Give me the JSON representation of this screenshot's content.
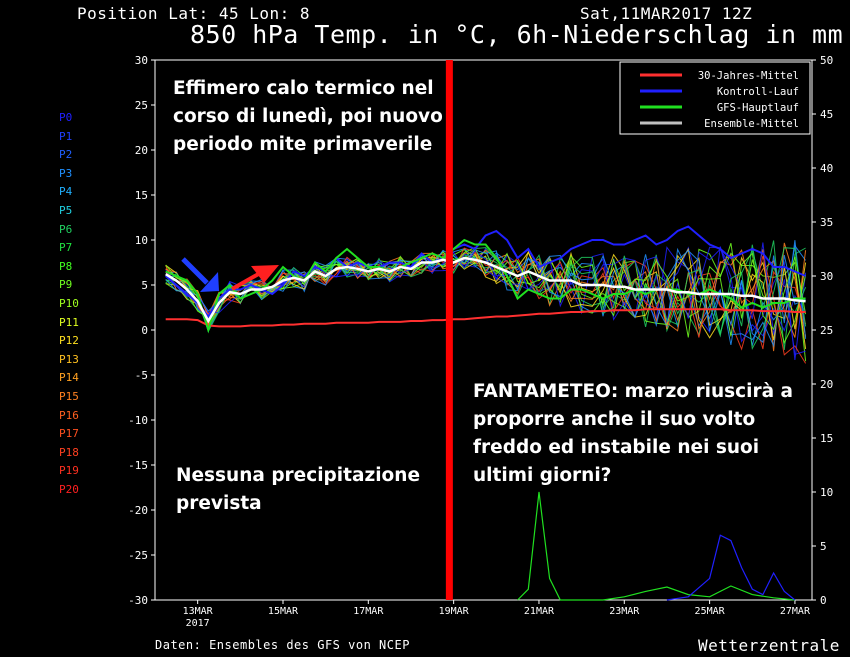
{
  "header": {
    "position": "Position  Lat: 45 Lon: 8",
    "date": "Sat,11MAR2017 12Z",
    "title": "850 hPa Temp. in °C, 6h-Niederschlag in mm"
  },
  "footer": {
    "source": "Daten: Ensembles des GFS von NCEP",
    "brand": "Wetterzentrale"
  },
  "annotations": {
    "top_left": "Effimero calo termico nel\ncorso di lunedì, poi nuovo\nperiodo mite primaverile",
    "bottom_right": "FANTAMETEO: marzo riuscirà a\nproporre anche il suo volto\nfreddo ed instabile nei suoi\nultimi giorni?",
    "bottom_left": "Nessuna precipitazione\nprevista"
  },
  "member_labels": [
    "P0",
    "P1",
    "P2",
    "P3",
    "P4",
    "P5",
    "P6",
    "P7",
    "P8",
    "P9",
    "P10",
    "P11",
    "P12",
    "P13",
    "P14",
    "P15",
    "P16",
    "P17",
    "P18",
    "P19",
    "P20"
  ],
  "member_colors": [
    "#2020ff",
    "#2040ff",
    "#2060ff",
    "#2090ff",
    "#20b0ff",
    "#20d0e0",
    "#20d060",
    "#20e040",
    "#40ff20",
    "#70ff20",
    "#a0ff20",
    "#e0ff20",
    "#ffe020",
    "#ffc020",
    "#ffa020",
    "#ff8020",
    "#ff6020",
    "#ff5020",
    "#ff4020",
    "#ff3020",
    "#ff2020"
  ],
  "marker_color": "#ff0000",
  "chart_data": {
    "type": "line",
    "title": "850 hPa Temp. in °C, 6h-Niederschlag in mm",
    "y_left_range": [
      -30,
      30
    ],
    "y_left_ticks": [
      "30",
      "25",
      "20",
      "15",
      "10",
      "5",
      "0",
      "-5",
      "-10",
      "-15",
      "-20",
      "-25",
      "-30"
    ],
    "y_right_range": [
      0,
      50
    ],
    "y_right_ticks": [
      "50",
      "45",
      "40",
      "35",
      "30",
      "25",
      "20",
      "15",
      "10",
      "5",
      "0"
    ],
    "x_range": [
      12,
      27.4
    ],
    "x_ticks": [
      {
        "x": 13,
        "label": "13MAR",
        "sub": "2017"
      },
      {
        "x": 15,
        "label": "15MAR",
        "sub": ""
      },
      {
        "x": 17,
        "label": "17MAR",
        "sub": ""
      },
      {
        "x": 19,
        "label": "19MAR",
        "sub": ""
      },
      {
        "x": 21,
        "label": "21MAR",
        "sub": ""
      },
      {
        "x": 23,
        "label": "23MAR",
        "sub": ""
      },
      {
        "x": 25,
        "label": "25MAR",
        "sub": ""
      },
      {
        "x": 27,
        "label": "27MAR",
        "sub": ""
      }
    ],
    "marker_x": 18.9,
    "legend": [
      {
        "name": "30-Jahres-Mittel",
        "color": "#ff3030"
      },
      {
        "name": "Kontroll-Lauf",
        "color": "#2020ff"
      },
      {
        "name": "GFS-Hauptlauf",
        "color": "#20e020"
      },
      {
        "name": "Ensemble-Mittel",
        "color": "#c0c0c0"
      }
    ],
    "legend_position": "top-right",
    "x": [
      12.25,
      12.5,
      12.75,
      13,
      13.25,
      13.5,
      13.75,
      14,
      14.25,
      14.5,
      14.75,
      15,
      15.25,
      15.5,
      15.75,
      16,
      16.25,
      16.5,
      16.75,
      17,
      17.25,
      17.5,
      17.75,
      18,
      18.25,
      18.5,
      18.75,
      19,
      19.25,
      19.5,
      19.75,
      20,
      20.25,
      20.5,
      20.75,
      21,
      21.25,
      21.5,
      21.75,
      22,
      22.25,
      22.5,
      22.75,
      23,
      23.25,
      23.5,
      23.75,
      24,
      24.25,
      24.5,
      24.75,
      25,
      25.25,
      25.5,
      25.75,
      26,
      26.25,
      26.5,
      26.75,
      27,
      27.25
    ],
    "series": [
      {
        "name": "30-Jahres-Mittel",
        "values": [
          1.2,
          1.2,
          1.2,
          1.1,
          0.5,
          0.4,
          0.4,
          0.4,
          0.5,
          0.5,
          0.5,
          0.6,
          0.6,
          0.7,
          0.7,
          0.7,
          0.8,
          0.8,
          0.8,
          0.8,
          0.9,
          0.9,
          0.9,
          1,
          1,
          1.1,
          1.1,
          1.2,
          1.2,
          1.3,
          1.4,
          1.5,
          1.5,
          1.6,
          1.7,
          1.8,
          1.8,
          1.9,
          2,
          2,
          2.1,
          2.1,
          2.2,
          2.2,
          2.2,
          2.3,
          2.3,
          2.3,
          2.3,
          2.3,
          2.3,
          2.3,
          2.3,
          2.2,
          2.2,
          2.2,
          2.1,
          2.1,
          2.1,
          2,
          2
        ]
      },
      {
        "name": "Kontroll-Lauf",
        "values": [
          6,
          5,
          4,
          3,
          1.5,
          3.5,
          4.5,
          4.5,
          5,
          4.5,
          4,
          5,
          6.5,
          6,
          7,
          6.5,
          8,
          7,
          7.5,
          7,
          7,
          7.5,
          7.5,
          7,
          8.5,
          7.5,
          8,
          9,
          9.5,
          9,
          10.5,
          11,
          10,
          8,
          9,
          7,
          7.5,
          8,
          9,
          9.5,
          10,
          10,
          9.5,
          9.5,
          10,
          10.5,
          9.5,
          10,
          11,
          11.5,
          10.5,
          9.5,
          9,
          8,
          8.5,
          9,
          8.5,
          7,
          7,
          6.5,
          6
        ]
      },
      {
        "name": "GFS-Hauptlauf",
        "values": [
          6.5,
          6,
          5.5,
          4,
          0,
          4,
          5,
          3.5,
          4,
          4.5,
          5.5,
          7,
          6,
          5.5,
          7.5,
          6.5,
          8,
          9,
          8,
          7,
          7,
          6.5,
          7,
          7.5,
          8,
          8.5,
          8,
          9,
          10,
          9.5,
          9.5,
          8,
          6,
          3.5,
          4.5,
          4,
          3.5,
          3.5,
          4.5,
          4.5,
          4,
          3.5,
          4,
          4,
          4.5,
          4,
          4.5,
          4.5,
          4.5,
          4,
          4,
          4.5,
          4,
          3.5,
          2.5,
          3,
          2.5,
          3,
          3,
          3.5,
          3.5
        ]
      },
      {
        "name": "Ensemble-Mittel",
        "values": [
          6.2,
          5.5,
          4.5,
          3.2,
          1,
          3,
          4.2,
          4,
          4.5,
          4.5,
          4.8,
          5.5,
          5.8,
          5.5,
          6.5,
          6,
          6.8,
          7,
          6.8,
          6.5,
          6.8,
          6.5,
          7,
          6.8,
          7.5,
          7.5,
          7.8,
          7.5,
          8,
          7.8,
          7.5,
          7,
          6.5,
          6,
          6.5,
          6,
          5.5,
          5.5,
          5.5,
          5,
          5,
          5,
          4.8,
          4.8,
          4.5,
          4.5,
          4.5,
          4.5,
          4.2,
          4.2,
          4,
          4,
          4,
          4,
          3.8,
          3.8,
          3.5,
          3.5,
          3.5,
          3.3,
          3.2
        ]
      }
    ],
    "precipitation": [
      {
        "name": "GFS-Hauptlauf",
        "x": [
          20.5,
          20.75,
          21,
          21.25,
          21.5,
          21.75,
          22,
          22.5,
          23,
          23.5,
          24,
          24.5,
          25,
          25.5,
          26,
          26.5,
          27
        ],
        "values": [
          0,
          1,
          10,
          2,
          0,
          0,
          0,
          0,
          0.3,
          0.8,
          1.2,
          0.5,
          0.3,
          1.3,
          0.5,
          0.2,
          0
        ]
      },
      {
        "name": "Kontroll-Lauf",
        "x": [
          24,
          24.5,
          25,
          25.25,
          25.5,
          25.75,
          26,
          26.25,
          26.5,
          26.75,
          27
        ],
        "values": [
          0,
          0.3,
          2,
          6,
          5.5,
          3,
          1,
          0.5,
          2.5,
          0.8,
          0
        ]
      }
    ]
  }
}
